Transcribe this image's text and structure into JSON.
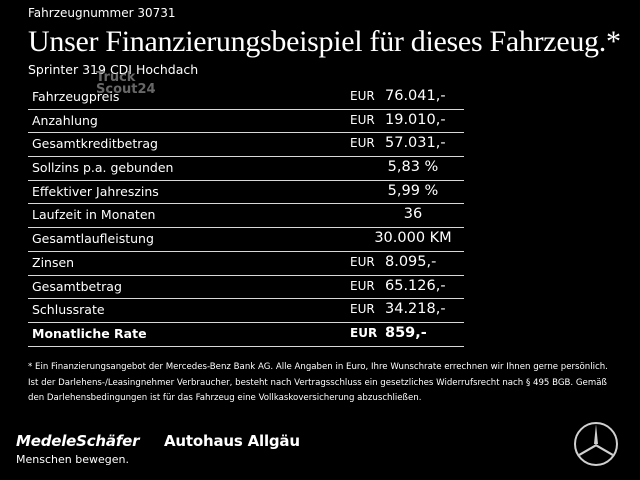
{
  "header": {
    "vehicle_number": "Fahrzeugnummer 30731",
    "headline": "Unser Finanzierungsbeispiel für dieses Fahrzeug.*",
    "model": "Sprinter 319 CDI Hochdach"
  },
  "watermark": {
    "line1": "Truck",
    "line2": "Scout24"
  },
  "rows": [
    {
      "label": "Fahrzeugpreis",
      "currency": "EUR",
      "value": "76.041,-"
    },
    {
      "label": "Anzahlung",
      "currency": "EUR",
      "value": "19.010,-"
    },
    {
      "label": "Gesamtkreditbetrag",
      "currency": "EUR",
      "value": "57.031,-"
    },
    {
      "label": "Sollzins p.a. gebunden",
      "currency": "",
      "value": "5,83 %"
    },
    {
      "label": "Effektiver Jahreszins",
      "currency": "",
      "value": "5,99 %"
    },
    {
      "label": "Laufzeit in Monaten",
      "currency": "",
      "value": "36"
    },
    {
      "label": "Gesamtlaufleistung",
      "currency": "",
      "value": "30.000 KM"
    },
    {
      "label": "Zinsen",
      "currency": "EUR",
      "value": "8.095,-"
    },
    {
      "label": "Gesamtbetrag",
      "currency": "EUR",
      "value": "65.126,-"
    },
    {
      "label": "Schlussrate",
      "currency": "EUR",
      "value": "34.218,-"
    },
    {
      "label": "Monatliche Rate",
      "currency": "EUR",
      "value": "859,-"
    }
  ],
  "footnote": "* Ein Finanzierungsangebot der Mercedes-Benz Bank AG. Alle Angaben in Euro, Ihre Wunschrate errechnen wir Ihnen gerne persönlich. Ist der Darlehens-/Leasingnehmer Verbraucher, besteht nach Vertragsschluss ein gesetzliches Widerrufsrecht nach § 495 BGB. Gemäß den Darlehensbedingungen ist für das Fahrzeug eine Vollkaskoversicherung abzuschließen.",
  "footer": {
    "dealer_name": "MedeleSchäfer",
    "slogan": "Menschen bewegen.",
    "dealer_name_2": "Autohaus Allgäu",
    "logo_icon": "mercedes-star-icon"
  },
  "colors": {
    "background": "#000000",
    "text": "#ffffff",
    "divider": "#d8d8d8"
  }
}
